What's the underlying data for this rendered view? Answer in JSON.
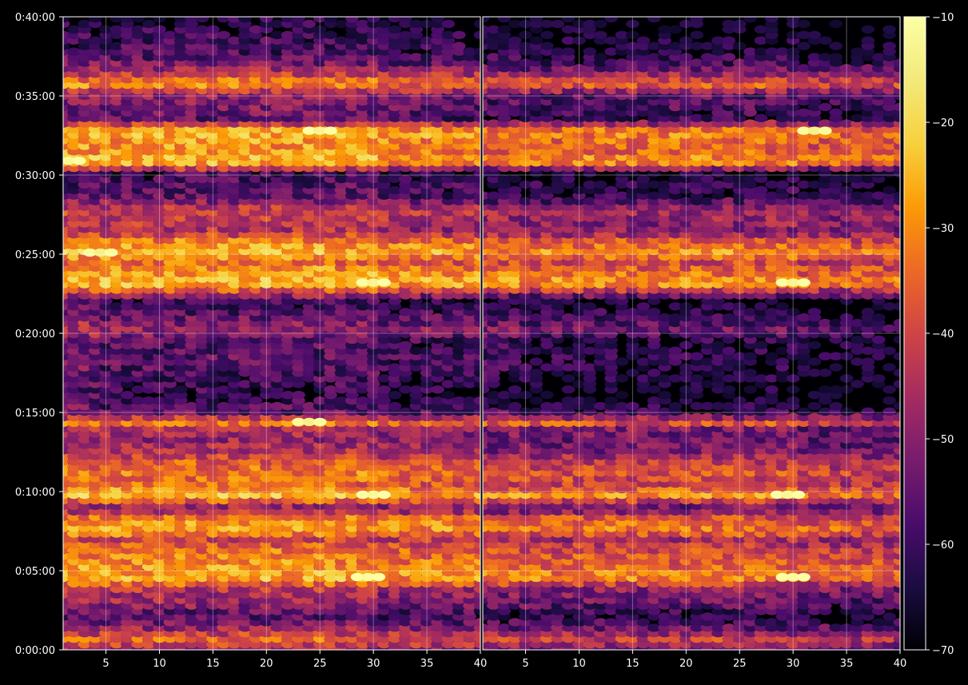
{
  "figure": {
    "background": "#000000",
    "foreground": "#ffffff",
    "colormap": "inferno"
  },
  "chart_data": {
    "type": "heatmap",
    "layout": "two side-by-side panels sharing the y axis",
    "title": "",
    "xlabel": "",
    "ylabel": "",
    "grid": true,
    "x_ticks": [
      "5",
      "10",
      "15",
      "20",
      "25",
      "30",
      "35",
      "40"
    ],
    "x_ticks_right": [
      "5",
      "10",
      "15",
      "20",
      "25",
      "30",
      "35",
      "40"
    ],
    "xlim": [
      1,
      40
    ],
    "y_ticks": [
      "0:00:00",
      "0:05:00",
      "0:10:00",
      "0:15:00",
      "0:20:00",
      "0:25:00",
      "0:30:00",
      "0:35:00",
      "0:40:00"
    ],
    "ylim_seconds": [
      0,
      2400
    ],
    "colorbar": {
      "ticks": [
        "−10",
        "−20",
        "−30",
        "−40",
        "−50",
        "−60",
        "−70"
      ],
      "range": [
        -70,
        -10
      ]
    },
    "band_profile_minutes": [
      [
        0.0,
        -48
      ],
      [
        0.7,
        -35
      ],
      [
        1.5,
        -50
      ],
      [
        2.2,
        -58
      ],
      [
        3.0,
        -48
      ],
      [
        3.8,
        -45
      ],
      [
        4.6,
        -25
      ],
      [
        5.5,
        -30
      ],
      [
        6.3,
        -33
      ],
      [
        7.0,
        -40
      ],
      [
        7.6,
        -26
      ],
      [
        8.3,
        -30
      ],
      [
        9.0,
        -50
      ],
      [
        9.8,
        -24
      ],
      [
        10.5,
        -35
      ],
      [
        11.2,
        -32
      ],
      [
        11.9,
        -36
      ],
      [
        12.6,
        -45
      ],
      [
        13.3,
        -48
      ],
      [
        14.0,
        -45
      ],
      [
        14.4,
        -30
      ],
      [
        15.0,
        -55
      ],
      [
        16.0,
        -62
      ],
      [
        16.6,
        -60
      ],
      [
        17.5,
        -58
      ],
      [
        18.5,
        -56
      ],
      [
        19.5,
        -58
      ],
      [
        20.3,
        -48
      ],
      [
        21.0,
        -54
      ],
      [
        22.0,
        -62
      ],
      [
        23.2,
        -22
      ],
      [
        23.9,
        -28
      ],
      [
        24.6,
        -35
      ],
      [
        25.1,
        -23
      ],
      [
        25.8,
        -30
      ],
      [
        26.5,
        -45
      ],
      [
        27.8,
        -40
      ],
      [
        28.6,
        -55
      ],
      [
        29.4,
        -57
      ],
      [
        30.1,
        -60
      ],
      [
        30.9,
        -22
      ],
      [
        31.6,
        -30
      ],
      [
        32.3,
        -28
      ],
      [
        32.8,
        -24
      ],
      [
        33.6,
        -55
      ],
      [
        34.3,
        -52
      ],
      [
        35.1,
        -50
      ],
      [
        35.8,
        -28
      ],
      [
        36.3,
        -40
      ],
      [
        37.0,
        -52
      ],
      [
        37.8,
        -58
      ],
      [
        38.6,
        -60
      ],
      [
        39.3,
        -62
      ],
      [
        40.0,
        -64
      ]
    ],
    "right_panel_offset": -6,
    "hot_spots": [
      {
        "panel": "left",
        "minute": 4.6,
        "x": 29.5,
        "value": -11
      },
      {
        "panel": "left",
        "minute": 9.8,
        "x": 30.0,
        "value": -12
      },
      {
        "panel": "left",
        "minute": 23.2,
        "x": 30.0,
        "value": -13
      },
      {
        "panel": "left",
        "minute": 25.1,
        "x": 4.5,
        "value": -14
      },
      {
        "panel": "left",
        "minute": 32.8,
        "x": 25.0,
        "value": -13
      },
      {
        "panel": "left",
        "minute": 30.9,
        "x": 1.5,
        "value": -12
      },
      {
        "panel": "left",
        "minute": 14.4,
        "x": 24.0,
        "value": -14
      },
      {
        "panel": "right",
        "minute": 4.6,
        "x": 30.0,
        "value": -11
      },
      {
        "panel": "right",
        "minute": 9.8,
        "x": 29.5,
        "value": -12
      },
      {
        "panel": "right",
        "minute": 23.2,
        "x": 30.0,
        "value": -13
      },
      {
        "panel": "right",
        "minute": 32.8,
        "x": 32.0,
        "value": -14
      }
    ]
  }
}
